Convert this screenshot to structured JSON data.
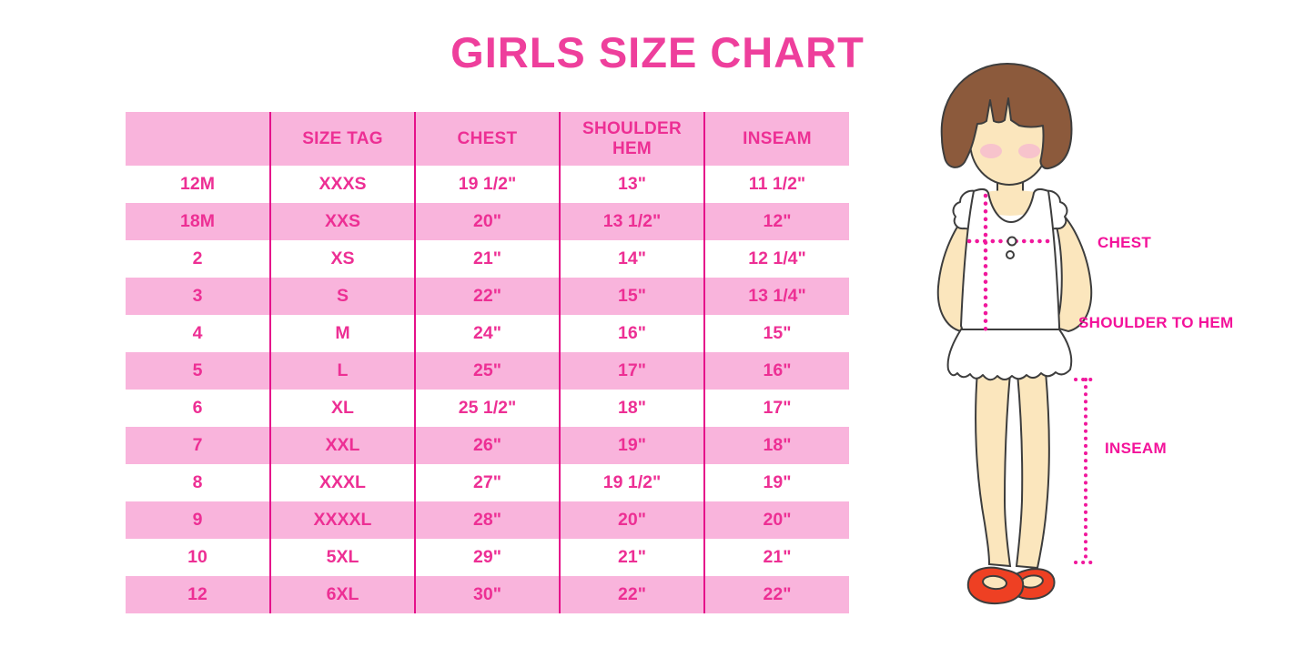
{
  "title": "GIRLS SIZE CHART",
  "colors": {
    "title_pink": "#ee3f9c",
    "row_pink_bg": "#f9b4dc",
    "table_border_magenta": "#e5118a",
    "cell_text_pink": "#ed2f94",
    "measure_label_pink": "#f3129a",
    "hair_brown": "#8c5a3c",
    "skin": "#fbe6bd",
    "blush": "#f7c3cc",
    "shoe_red": "#ee4023"
  },
  "chart_data": {
    "type": "table",
    "title": "GIRLS SIZE CHART",
    "columns": [
      "",
      "SIZE TAG",
      "CHEST",
      "SHOULDER HEM",
      "INSEAM"
    ],
    "rows": [
      [
        "12M",
        "XXXS",
        "19 1/2\"",
        "13\"",
        "11 1/2\""
      ],
      [
        "18M",
        "XXS",
        "20\"",
        "13 1/2\"",
        "12\""
      ],
      [
        "2",
        "XS",
        "21\"",
        "14\"",
        "12 1/4\""
      ],
      [
        "3",
        "S",
        "22\"",
        "15\"",
        "13 1/4\""
      ],
      [
        "4",
        "M",
        "24\"",
        "16\"",
        "15\""
      ],
      [
        "5",
        "L",
        "25\"",
        "17\"",
        "16\""
      ],
      [
        "6",
        "XL",
        "25 1/2\"",
        "18\"",
        "17\""
      ],
      [
        "7",
        "XXL",
        "26\"",
        "19\"",
        "18\""
      ],
      [
        "8",
        "XXXL",
        "27\"",
        "19 1/2\"",
        "19\""
      ],
      [
        "9",
        "XXXXL",
        "28\"",
        "20\"",
        "20\""
      ],
      [
        "10",
        "5XL",
        "29\"",
        "21\"",
        "21\""
      ],
      [
        "12",
        "6XL",
        "30\"",
        "22\"",
        "22\""
      ]
    ],
    "row_shading": "alternating pink starting at second data row; header row pink"
  },
  "figure": {
    "labels": {
      "chest": "CHEST",
      "shoulder_to_hem": "SHOULDER TO HEM",
      "inseam": "INSEAM"
    }
  }
}
